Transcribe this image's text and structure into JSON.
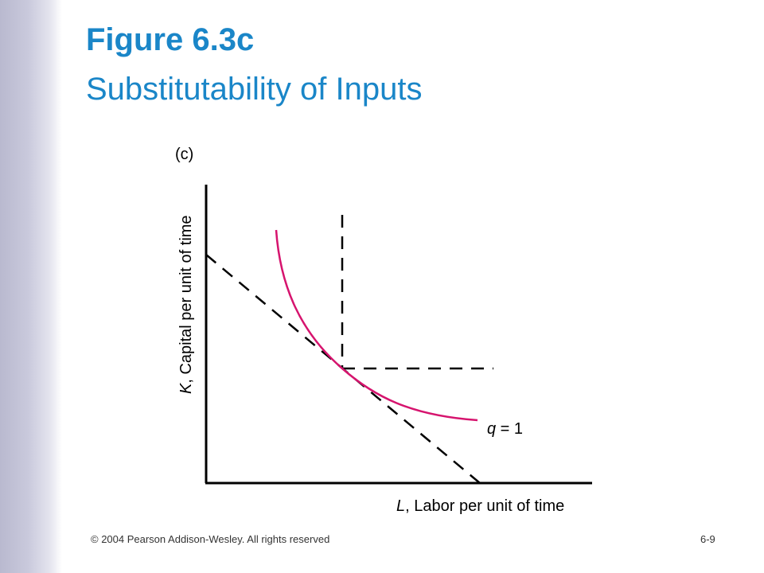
{
  "slide": {
    "title": "Figure 6.3c",
    "subtitle": "Substitutability of Inputs",
    "panel_label": "(c)",
    "y_axis_label_var": "K",
    "y_axis_label_text": ", Capital per unit of time",
    "x_axis_label_var": "L",
    "x_axis_label_text": ", Labor per unit of time",
    "curve_label_var": "q",
    "curve_label_text": " = 1",
    "footer_copyright": "© 2004 Pearson Addison-Wesley. All rights reserved",
    "page_number": "6-9"
  },
  "colors": {
    "title": "#1a86c8",
    "isoquant": "#d6146e",
    "axes": "#000000",
    "side_band": "#c4c4d8"
  }
}
